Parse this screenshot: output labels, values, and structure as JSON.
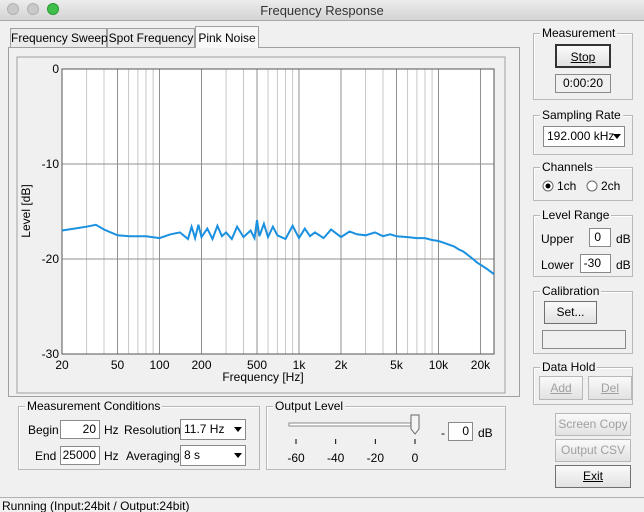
{
  "window": {
    "title": "Frequency Response"
  },
  "tabs": [
    "Frequency Sweep",
    "Spot Frequency",
    "Pink Noise"
  ],
  "chart_data": {
    "type": "line",
    "xlabel": "Frequency [Hz]",
    "ylabel": "Level [dB]",
    "xscale": "log",
    "grid": true,
    "color": "#1a90e0",
    "xlim": [
      20,
      25000
    ],
    "ylim": [
      -30,
      0
    ],
    "xticks": [
      20,
      50,
      100,
      200,
      500,
      {
        "value": 1000,
        "label": "1k"
      },
      {
        "value": 2000,
        "label": "2k"
      },
      {
        "value": 5000,
        "label": "5k"
      },
      {
        "value": 10000,
        "label": "10k"
      },
      {
        "value": 20000,
        "label": "20k"
      }
    ],
    "xminorticks": [
      30,
      40,
      60,
      70,
      80,
      90,
      300,
      400,
      600,
      700,
      800,
      900,
      3000,
      4000,
      6000,
      7000,
      8000,
      9000
    ],
    "yticks": [
      0,
      -10,
      -20,
      -30
    ],
    "x": [
      20,
      30,
      35,
      40,
      50,
      60,
      80,
      100,
      120,
      140,
      160,
      170,
      180,
      190,
      200,
      220,
      240,
      260,
      280,
      300,
      330,
      360,
      400,
      450,
      480,
      500,
      520,
      560,
      600,
      650,
      700,
      800,
      900,
      1000,
      1100,
      1200,
      1300,
      1500,
      1700,
      2000,
      2300,
      2600,
      3000,
      3500,
      4000,
      4500,
      5000,
      6000,
      7000,
      8000,
      9000,
      10000,
      11000,
      12000,
      13000,
      14000,
      15000,
      16000,
      17000,
      18000,
      19000,
      20000,
      22000,
      25000
    ],
    "values": [
      -17.0,
      -16.6,
      -16.4,
      -16.9,
      -17.5,
      -17.6,
      -17.6,
      -17.8,
      -17.4,
      -17.2,
      -17.9,
      -16.6,
      -17.8,
      -16.4,
      -17.7,
      -16.8,
      -17.9,
      -16.5,
      -17.6,
      -17.2,
      -17.9,
      -16.6,
      -17.7,
      -17.0,
      -17.8,
      -15.9,
      -17.6,
      -16.3,
      -17.7,
      -16.6,
      -17.5,
      -17.9,
      -16.5,
      -17.8,
      -16.8,
      -17.6,
      -17.2,
      -17.8,
      -16.9,
      -17.7,
      -17.1,
      -17.4,
      -17.5,
      -17.2,
      -17.6,
      -17.4,
      -17.6,
      -17.7,
      -17.8,
      -17.8,
      -18.0,
      -18.1,
      -18.3,
      -18.5,
      -18.7,
      -19.0,
      -19.2,
      -19.5,
      -19.8,
      -20.1,
      -20.4,
      -20.6,
      -21.0,
      -21.6
    ]
  },
  "measurement_conditions": {
    "title": "Measurement Conditions",
    "begin_label": "Begin",
    "begin_value": "20",
    "begin_unit": "Hz",
    "end_label": "End",
    "end_value": "25000",
    "end_unit": "Hz",
    "resolution_label": "Resolution",
    "resolution_value": "11.7 Hz",
    "averaging_label": "Averaging",
    "averaging_value": "8 s"
  },
  "output_level": {
    "title": "Output Level",
    "scale": [
      -60,
      -40,
      -20,
      0
    ],
    "minus": "-",
    "value": 0,
    "unit": "dB"
  },
  "measurement": {
    "title": "Measurement",
    "button": "Stop",
    "elapsed": "0:00:20"
  },
  "sampling_rate": {
    "title": "Sampling Rate",
    "value": "192.000 kHz"
  },
  "channels": {
    "title": "Channels",
    "options": [
      "1ch",
      "2ch"
    ]
  },
  "level_range": {
    "title": "Level Range",
    "upper_label": "Upper",
    "upper_value": "0",
    "lower_label": "Lower",
    "lower_value": "-30",
    "unit": "dB"
  },
  "calibration": {
    "title": "Calibration",
    "button": "Set..."
  },
  "data_hold": {
    "title": "Data Hold",
    "add": "Add",
    "del": "Del"
  },
  "buttons": [
    "Screen Copy",
    "Output CSV",
    "Exit"
  ],
  "status": "Running (Input:24bit / Output:24bit)"
}
